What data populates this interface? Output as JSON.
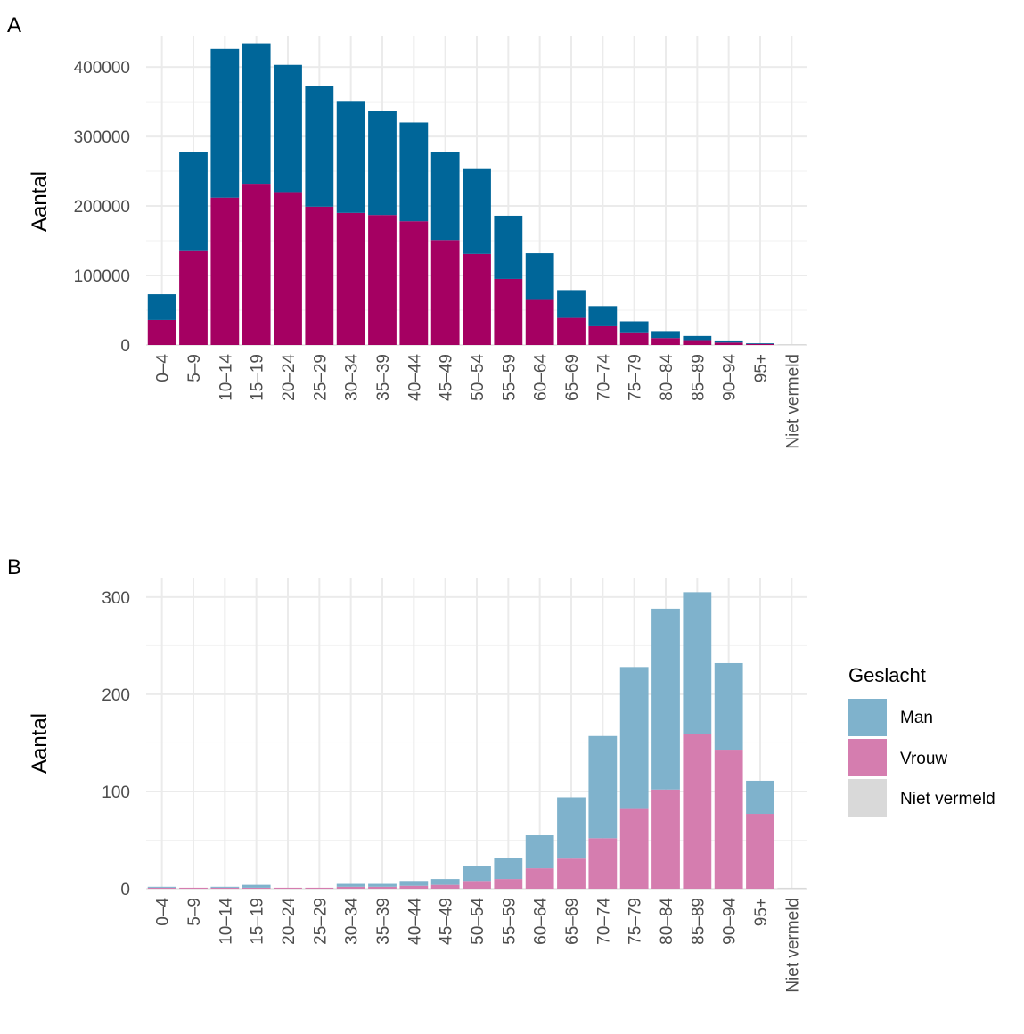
{
  "legend": {
    "title": "Geslacht",
    "entries": [
      {
        "label": "Man",
        "color": "#7FB2CC"
      },
      {
        "label": "Vrouw",
        "color": "#D57DAF"
      },
      {
        "label": "Niet vermeld",
        "color": "#D9D9D9"
      }
    ]
  },
  "chart_data": [
    {
      "panel": "A",
      "type": "bar",
      "stacked": true,
      "ylabel": "Aantal",
      "xlabel": "",
      "yticks": [
        0,
        100000,
        200000,
        300000,
        400000
      ],
      "ylim": [
        0,
        445000
      ],
      "grid": true,
      "categories": [
        "0–4",
        "5–9",
        "10–14",
        "15–19",
        "20–24",
        "25–29",
        "30–34",
        "35–39",
        "40–44",
        "45–49",
        "50–54",
        "55–59",
        "60–64",
        "65–69",
        "70–74",
        "75–79",
        "80–84",
        "85–89",
        "90–94",
        "95+",
        "Niet vermeld"
      ],
      "series": [
        {
          "name": "Niet vermeld",
          "color": "#D9D9D9",
          "values": [
            0,
            0,
            0,
            0,
            0,
            0,
            0,
            0,
            0,
            0,
            0,
            0,
            0,
            0,
            0,
            0,
            0,
            0,
            0,
            0,
            1200
          ]
        },
        {
          "name": "Vrouw",
          "color": "#A50062",
          "values": [
            36000,
            135000,
            212000,
            232000,
            220000,
            199000,
            190000,
            187000,
            178000,
            151000,
            131000,
            95000,
            66000,
            39000,
            27000,
            17000,
            10000,
            7000,
            3500,
            1500,
            0
          ]
        },
        {
          "name": "Man",
          "color": "#006699",
          "values": [
            37000,
            142000,
            214000,
            202000,
            183000,
            174000,
            161000,
            150000,
            142000,
            127000,
            122000,
            91000,
            66000,
            40000,
            29000,
            17000,
            10000,
            6000,
            3000,
            1000,
            0
          ]
        }
      ]
    },
    {
      "panel": "B",
      "type": "bar",
      "stacked": true,
      "ylabel": "Aantal",
      "xlabel": "",
      "yticks": [
        0,
        100,
        200,
        300
      ],
      "ylim": [
        0,
        320
      ],
      "grid": true,
      "categories": [
        "0–4",
        "5–9",
        "10–14",
        "15–19",
        "20–24",
        "25–29",
        "30–34",
        "35–39",
        "40–44",
        "45–49",
        "50–54",
        "55–59",
        "60–64",
        "65–69",
        "70–74",
        "75–79",
        "80–84",
        "85–89",
        "90–94",
        "95+",
        "Niet vermeld"
      ],
      "series": [
        {
          "name": "Niet vermeld",
          "color": "#D9D9D9",
          "values": [
            0,
            0,
            0,
            0,
            0,
            0,
            0,
            0,
            0,
            0,
            0,
            0,
            0,
            0,
            0,
            0,
            0,
            0,
            0,
            0,
            1
          ]
        },
        {
          "name": "Vrouw",
          "color": "#D57DAF",
          "values": [
            1,
            1,
            1,
            1,
            1,
            1,
            2,
            2,
            3,
            4,
            8,
            10,
            21,
            31,
            52,
            82,
            102,
            159,
            143,
            77,
            0
          ]
        },
        {
          "name": "Man",
          "color": "#7FB2CC",
          "values": [
            1,
            0,
            1,
            3,
            0,
            0,
            3,
            3,
            5,
            6,
            15,
            22,
            34,
            63,
            105,
            146,
            186,
            146,
            89,
            34,
            0
          ]
        }
      ]
    }
  ]
}
